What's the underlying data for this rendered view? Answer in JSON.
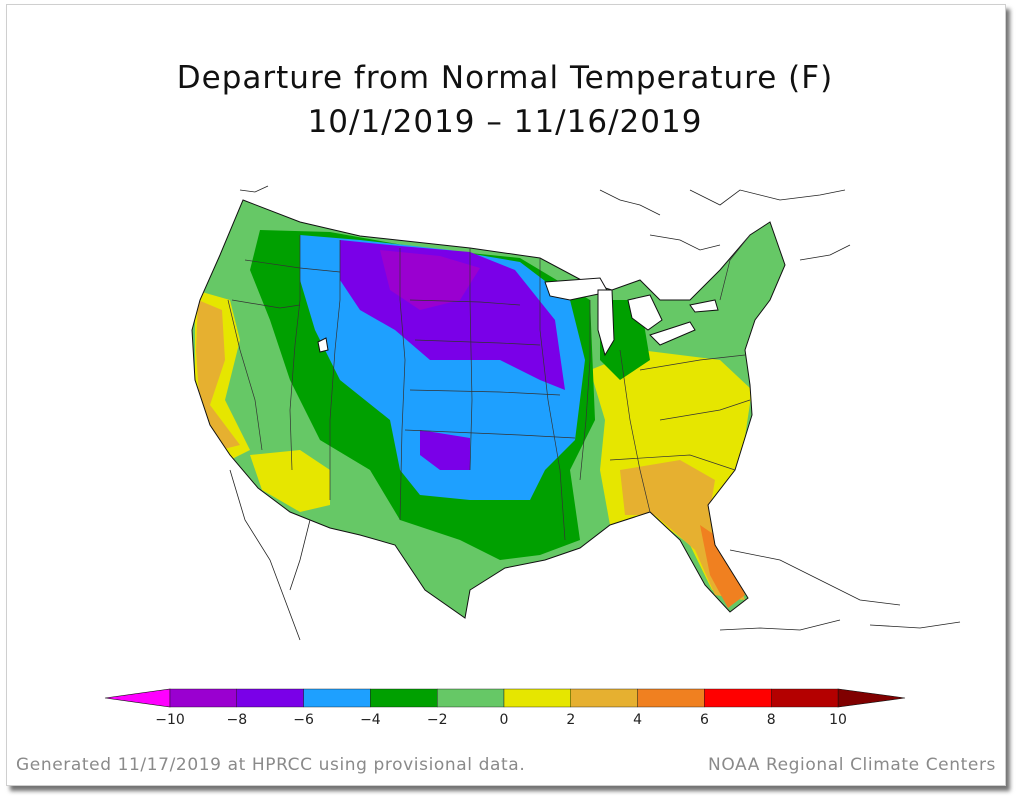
{
  "title": {
    "line1": "Departure from Normal Temperature (F)",
    "line2": "10/1/2019 – 11/16/2019"
  },
  "legend": {
    "colors": [
      "#ff00ff",
      "#9900cc",
      "#6a00e0",
      "#1e9fff",
      "#00a000",
      "#66c866",
      "#e6e600",
      "#e6b030",
      "#f08020",
      "#ff0000",
      "#b40000",
      "#800000"
    ],
    "bins": [
      {
        "color": "#9a00d0",
        "tick": "−10"
      },
      {
        "color": "#7a00e8",
        "tick": "−8"
      },
      {
        "color": "#1ea0ff",
        "tick": "−6"
      },
      {
        "color": "#00a000",
        "tick": "−4"
      },
      {
        "color": "#66c866",
        "tick": "−2"
      },
      {
        "color": "#e6e600",
        "tick": "0"
      },
      {
        "color": "#e6b030",
        "tick": "2"
      },
      {
        "color": "#f08020",
        "tick": "4"
      },
      {
        "color": "#ff0000",
        "tick": "6"
      },
      {
        "color": "#b40000",
        "tick": "8"
      },
      {
        "color": "#800000",
        "tick": "10"
      }
    ],
    "low_arrow_color": "#ff00ff",
    "high_arrow_color": "#800000"
  },
  "footer": {
    "left": "Generated 11/17/2019 at HPRCC using provisional data.",
    "right": "NOAA Regional Climate Centers"
  }
}
